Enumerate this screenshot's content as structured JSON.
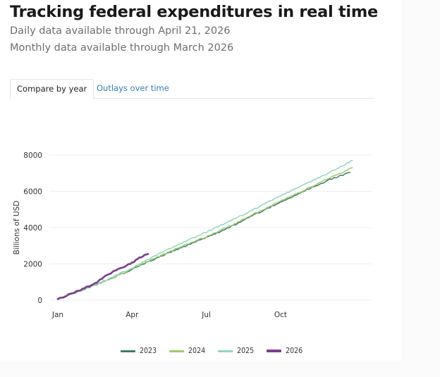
{
  "header": {
    "title": "Tracking federal expenditures in real time",
    "daily_note": "Daily data available through April 21, 2026",
    "monthly_note": "Monthly data available through March 2026"
  },
  "tabs": [
    {
      "label": "Compare by year",
      "active": true
    },
    {
      "label": "Outlays over time",
      "active": false
    }
  ],
  "colors": {
    "2023": "#3d7a6e",
    "2024": "#9ccc65",
    "2025": "#93d4c0",
    "2026": "#7b3d8c",
    "grid": "#eeeeee",
    "tab_link": "#2f7fb8"
  },
  "chart_data": {
    "type": "line",
    "title": "",
    "xlabel": "",
    "ylabel": "Billions of USD",
    "ylim": [
      0,
      8000
    ],
    "yticks": [
      0,
      2000,
      4000,
      6000,
      8000
    ],
    "ytick_labels": [
      "0",
      "2000",
      "4000",
      "6000",
      "8000"
    ],
    "xticks_month": [
      0,
      3,
      6,
      9
    ],
    "xtick_labels": [
      "Jan",
      "Apr",
      "Jul",
      "Oct"
    ],
    "x_unit": "months since Jan 1",
    "grid": "horizontal",
    "legend_position": "bottom-center",
    "series": [
      {
        "name": "2023",
        "x": [
          0,
          1,
          2,
          3,
          4,
          5,
          6,
          7,
          8,
          9,
          10,
          11,
          11.8
        ],
        "values": [
          60,
          560,
          1100,
          1700,
          2330,
          2900,
          3450,
          4050,
          4750,
          5400,
          6050,
          6650,
          7050
        ]
      },
      {
        "name": "2024",
        "x": [
          0,
          1,
          2,
          3,
          4,
          5,
          6,
          7,
          8,
          9,
          10,
          11,
          11.9
        ],
        "values": [
          60,
          560,
          1100,
          1720,
          2370,
          2950,
          3500,
          4120,
          4800,
          5450,
          6100,
          6750,
          7300
        ]
      },
      {
        "name": "2025",
        "x": [
          0,
          1,
          2,
          3,
          4,
          5,
          6,
          7,
          8,
          9,
          10,
          11,
          11.9
        ],
        "values": [
          60,
          570,
          1150,
          1780,
          2500,
          3150,
          3750,
          4400,
          5050,
          5750,
          6400,
          7050,
          7700
        ]
      },
      {
        "name": "2026",
        "x": [
          0,
          0.5,
          1,
          1.5,
          2,
          2.5,
          3,
          3.3,
          3.65
        ],
        "values": [
          60,
          330,
          620,
          920,
          1400,
          1750,
          2050,
          2350,
          2550
        ]
      }
    ]
  }
}
